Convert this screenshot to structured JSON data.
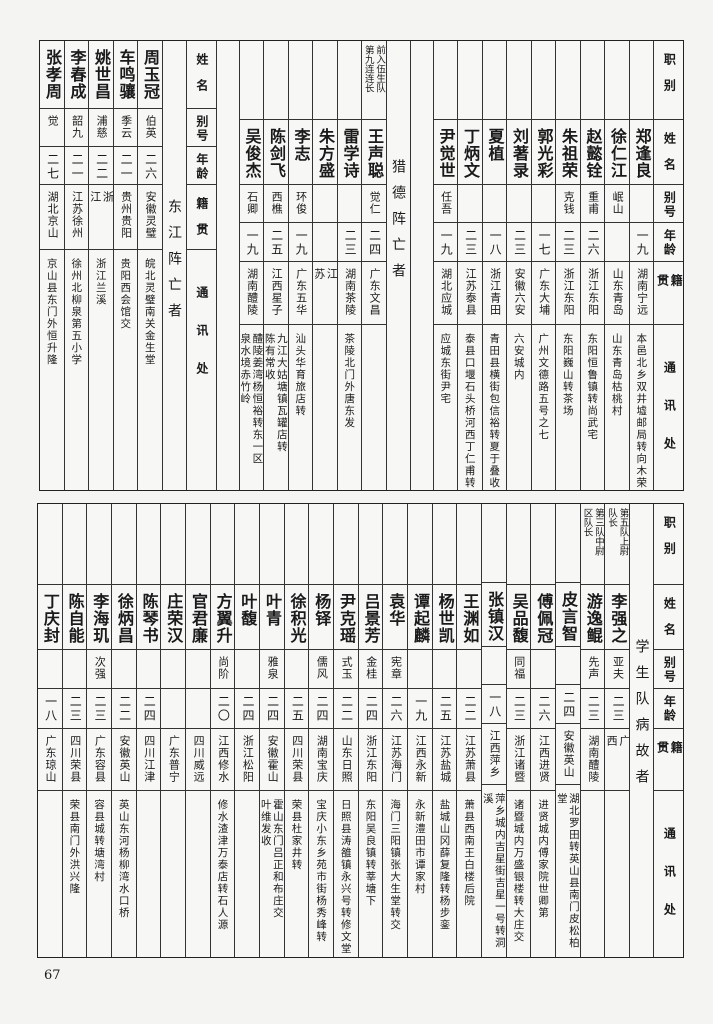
{
  "headers": {
    "position": "职别",
    "name": "姓名",
    "alias": "别号",
    "age": "年龄",
    "native": "籍贯",
    "address": "通讯处"
  },
  "top_right": {
    "people": [
      {
        "position": "",
        "name": "郑逢良",
        "alias": "",
        "age": "一九",
        "native": "湖南宁远",
        "address": "本邑北乡双井墟邮局转向木荣"
      },
      {
        "position": "",
        "name": "徐仁江",
        "alias": "岷山",
        "age": "",
        "native": "山东青岛",
        "address": "山东青岛枯桃村"
      },
      {
        "position": "",
        "name": "赵懿铨",
        "alias": "重甫",
        "age": "二六",
        "native": "浙江东阳",
        "address": "东阳恒鲁镇转尚武宅"
      },
      {
        "position": "",
        "name": "朱祖荣",
        "alias": "克钱",
        "age": "二三",
        "native": "浙江东阳",
        "address": "东阳巍山转茶场"
      },
      {
        "position": "",
        "name": "郭光彩",
        "alias": "",
        "age": "一七",
        "native": "广东大埔",
        "address": "广州文德路五号之七"
      },
      {
        "position": "",
        "name": "刘著录",
        "alias": "",
        "age": "二三",
        "native": "安徽六安",
        "address": "六安城内"
      },
      {
        "position": "",
        "name": "夏植",
        "alias": "",
        "age": "一八",
        "native": "浙江青田",
        "address": "青田县横街包信裕转夏于叠收"
      },
      {
        "position": "",
        "name": "丁炳文",
        "alias": "",
        "age": "二三",
        "native": "江苏泰县",
        "address": "泰县口堰石头桥河西丁仁甫转"
      },
      {
        "position": "",
        "name": "尹觉世",
        "alias": "任吾",
        "age": "一九",
        "native": "湖北应城",
        "address": "应城东街尹宅"
      }
    ]
  },
  "liede": {
    "heading": "猎德阵亡者",
    "people": [
      {
        "position": "前入伍生队\n第九连连长",
        "name": "王声聪",
        "alias": "觉仁",
        "age": "二四",
        "native": "广东文昌",
        "address": ""
      },
      {
        "position": "",
        "name": "雷学诗",
        "alias": "",
        "age": "二三",
        "native": "湖南茶陵",
        "address": "茶陵北门外唐东发"
      },
      {
        "position": "",
        "name": "朱方盛",
        "alias": "",
        "age": "",
        "native": "江苏",
        "address": ""
      },
      {
        "position": "",
        "name": "李志",
        "alias": "环俊",
        "age": "一九",
        "native": "广东五华",
        "address": "汕头华育旅店转"
      },
      {
        "position": "",
        "name": "陈剑飞",
        "alias": "西樵",
        "age": "二五",
        "native": "江西星子",
        "address": "九江大姑塘镇瓦罐店转\n陈有常收"
      },
      {
        "position": "",
        "name": "吴俊杰",
        "alias": "石卿",
        "age": "一九",
        "native": "湖南醴陵",
        "address": "醴陵姜湾杨恒裕转东一区\n泉水境赤竹岭"
      }
    ]
  },
  "dongjiang": {
    "heading": "东江阵亡者",
    "people": [
      {
        "name": "周玉冠",
        "alias": "伯英",
        "age": "二六",
        "native": "安徽灵璧",
        "address": "皖北灵璧南关金生堂"
      },
      {
        "name": "车鸣骧",
        "alias": "季云",
        "age": "二一",
        "native": "贵州贵阳",
        "address": "贵阳西会馆交"
      },
      {
        "name": "姚世昌",
        "alias": "浦慈",
        "age": "二二",
        "native": "浙江",
        "address": "浙江兰溪"
      },
      {
        "name": "李春成",
        "alias": "韶九",
        "age": "二一",
        "native": "江苏徐州",
        "address": "徐州北柳泉第五小学"
      },
      {
        "name": "张孝周",
        "alias": "觉",
        "age": "二七",
        "native": "湖北京山",
        "address": "京山县东门外恒升隆"
      }
    ]
  },
  "student": {
    "heading": "学生队病故者",
    "people": [
      {
        "position": "第五队上尉\n队长",
        "name": "李强之",
        "alias": "亚夫",
        "age": "二三",
        "native": "广西",
        "address": ""
      },
      {
        "position": "第三队中尉\n区队长",
        "name": "游逸鲲",
        "alias": "先声",
        "age": "二三",
        "native": "湖南醴陵",
        "address": ""
      },
      {
        "position": "",
        "name": "皮言智",
        "alias": "",
        "age": "二四",
        "native": "安徽英山",
        "address": "湖北罗田转英山县南门皮松柏堂"
      },
      {
        "position": "",
        "name": "傅佩冠",
        "alias": "",
        "age": "二六",
        "native": "江西进贤",
        "address": "进贤城内傅家院世卿第"
      },
      {
        "position": "",
        "name": "吴品馥",
        "alias": "同福",
        "age": "二三",
        "native": "浙江诸暨",
        "address": "诸暨城内万盛银楼转大庄交"
      },
      {
        "position": "",
        "name": "张镇汉",
        "alias": "",
        "age": "一八",
        "native": "江西萍乡",
        "address": "萍乡城内吉星街吉星一号转洞溪"
      },
      {
        "position": "",
        "name": "王渊如",
        "alias": "",
        "age": "二二",
        "native": "江苏萧县",
        "address": "萧县西南王白楼后院"
      },
      {
        "position": "",
        "name": "杨世凯",
        "alias": "",
        "age": "二五",
        "native": "江苏盐城",
        "address": "盐城山冈薛复隆转杨步銮"
      },
      {
        "position": "",
        "name": "谭起麟",
        "alias": "",
        "age": "一九",
        "native": "江西永新",
        "address": "永新澧田市谭家村"
      },
      {
        "position": "",
        "name": "袁华",
        "alias": "宪章",
        "age": "二六",
        "native": "江苏海门",
        "address": "海门三阳镇张大生堂转交"
      },
      {
        "position": "",
        "name": "吕景芳",
        "alias": "金桂",
        "age": "二四",
        "native": "浙江东阳",
        "address": "东阳吴良镇转莘塘下"
      },
      {
        "position": "",
        "name": "尹克瑶",
        "alias": "式玉",
        "age": "二二",
        "native": "山东日照",
        "address": "日照县涛雒镇永兴号转修文堂"
      },
      {
        "position": "",
        "name": "杨铎",
        "alias": "儒风",
        "age": "二四",
        "native": "湖南宝庆",
        "address": "宝庆小东乡苑市街杨秀峰转"
      },
      {
        "position": "",
        "name": "徐积光",
        "alias": "",
        "age": "二五",
        "native": "四川荣县",
        "address": "荣县杜家井转"
      },
      {
        "position": "",
        "name": "叶青",
        "alias": "雅泉",
        "age": "二四",
        "native": "安徽霍山",
        "address": "霍山东门吕正和布庄交\n叶维发收"
      },
      {
        "position": "",
        "name": "叶馥",
        "alias": "",
        "age": "二四",
        "native": "浙江松阳",
        "address": ""
      },
      {
        "position": "",
        "name": "方翼升",
        "alias": "尚阶",
        "age": "二〇",
        "native": "江西修水",
        "address": "修水渣津万泰店转石人源"
      },
      {
        "position": "",
        "name": "官君廉",
        "alias": "",
        "age": "",
        "native": "四川威远",
        "address": ""
      },
      {
        "position": "",
        "name": "庄荣汉",
        "alias": "",
        "age": "",
        "native": "广东普宁",
        "address": ""
      },
      {
        "position": "",
        "name": "陈琴书",
        "alias": "",
        "age": "二四",
        "native": "四川江津",
        "address": ""
      },
      {
        "position": "",
        "name": "徐炳昌",
        "alias": "",
        "age": "二二",
        "native": "安徽英山",
        "address": "英山东河杨柳湾水口桥"
      },
      {
        "position": "",
        "name": "李海玑",
        "alias": "次强",
        "age": "二三",
        "native": "广东容县",
        "address": "容县城转塘湾村"
      },
      {
        "position": "",
        "name": "陈自能",
        "alias": "",
        "age": "二三",
        "native": "四川荣县",
        "address": "荣县南门外洪兴隆"
      },
      {
        "position": "",
        "name": "丁庆封",
        "alias": "",
        "age": "一八",
        "native": "广东琼山",
        "address": ""
      }
    ]
  },
  "page_number": "67"
}
